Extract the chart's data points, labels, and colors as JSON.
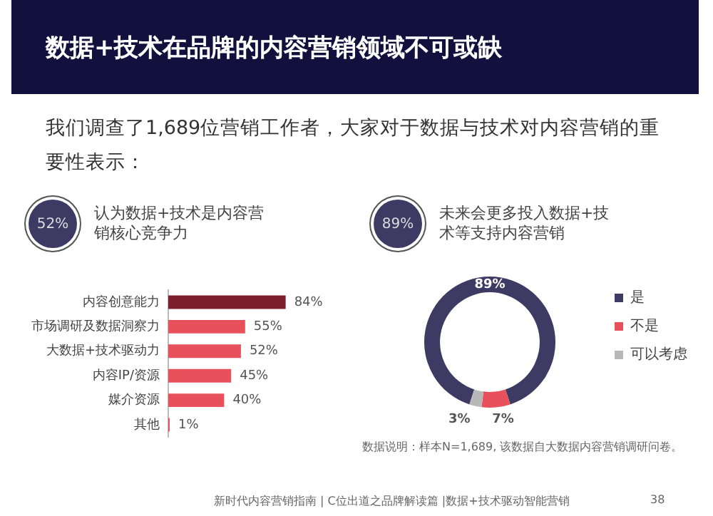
{
  "chart_data": [
    {
      "type": "other",
      "title": "数据+技术在品牌的内容营销领域不可或缺",
      "subtitle": "我们调查了1,689位营销工作者，大家对于数据与技术对内容营销的重要性表示：",
      "annotations": [
        "新时代内容营销指南 | C位出道之品牌解读篇 |数据+技术驱动智能营销",
        "38"
      ]
    },
    {
      "type": "bar",
      "orientation": "horizontal",
      "title": "认为数据+技术是内容营销核心竞争力",
      "annotations": [
        "52%"
      ],
      "categories": [
        "内容创意能力",
        "市场调研及数据洞察力",
        "大数据+技术驱动力",
        "内容IP/资源",
        "媒介资源",
        "其他"
      ],
      "values": [
        84,
        55,
        52,
        45,
        40,
        1
      ],
      "colors": [
        "#7a1f2b",
        "#e8505b",
        "#e8505b",
        "#e8505b",
        "#e8505b",
        "#e8505b"
      ],
      "value_labels": [
        "84%",
        "55%",
        "52%",
        "45%",
        "40%",
        "1%"
      ],
      "tick_labels": "y",
      "legend": false,
      "grid": false
    },
    {
      "type": "donut",
      "title": "未来会更多投入数据+技术等支持内容营销",
      "annotations": [
        "89%",
        "数据说明：样本N=1,689, 该数据自大数据内容营销调研问卷。"
      ],
      "categories": [
        "是",
        "不是",
        "可以考虑"
      ],
      "values": [
        89,
        7,
        3
      ],
      "colors": [
        "#3d3b63",
        "#e8505b",
        "#b8b8b8"
      ],
      "value_labels": [
        "89%",
        "7%",
        "3%"
      ],
      "legend": "right"
    }
  ]
}
